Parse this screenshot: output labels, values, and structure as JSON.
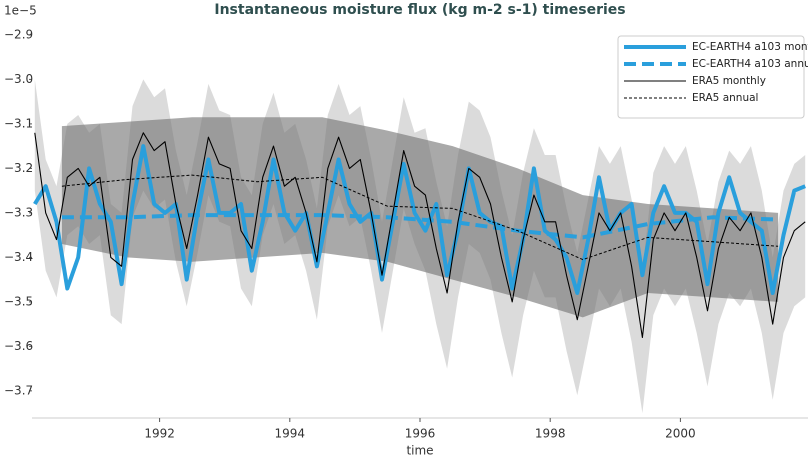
{
  "chart_data": {
    "type": "line",
    "title": "Instantaneous moisture flux (kg m-2 s-1) timeseries",
    "xlabel": "time",
    "offset_label": "1e−5",
    "xlim": [
      1990.04,
      2001.96
    ],
    "ylim": [
      -3.761,
      -2.862
    ],
    "xticks": [
      1992,
      1994,
      1996,
      1998,
      2000
    ],
    "yticks": [
      {
        "value": -3.7,
        "label": "−3.7"
      },
      {
        "value": -3.6,
        "label": "−3.6"
      },
      {
        "value": -3.5,
        "label": "−3.5"
      },
      {
        "value": -3.4,
        "label": "−3.4"
      },
      {
        "value": -3.3,
        "label": "−3.3"
      },
      {
        "value": -3.2,
        "label": "−3.2"
      },
      {
        "value": -3.1,
        "label": "−3.1"
      },
      {
        "value": -3.0,
        "label": "−3.0"
      },
      {
        "value": -2.9,
        "label": "−2.9"
      }
    ],
    "legend": "upper right",
    "bands": [
      {
        "color": "#bdbdbd",
        "opacity": 0.55,
        "x": [
          1990.083,
          1990.25,
          1990.417,
          1990.583,
          1990.75,
          1990.917,
          1991.083,
          1991.25,
          1991.417,
          1991.583,
          1991.75,
          1991.917,
          1992.083,
          1992.25,
          1992.417,
          1992.583,
          1992.75,
          1992.917,
          1993.083,
          1993.25,
          1993.417,
          1993.583,
          1993.75,
          1993.917,
          1994.083,
          1994.25,
          1994.417,
          1994.583,
          1994.75,
          1994.917,
          1995.083,
          1995.25,
          1995.417,
          1995.583,
          1995.75,
          1995.917,
          1996.083,
          1996.25,
          1996.417,
          1996.583,
          1996.75,
          1996.917,
          1997.083,
          1997.25,
          1997.417,
          1997.583,
          1997.75,
          1997.917,
          1998.083,
          1998.25,
          1998.417,
          1998.583,
          1998.75,
          1998.917,
          1999.083,
          1999.25,
          1999.417,
          1999.583,
          1999.75,
          1999.917,
          2000.083,
          2000.25,
          2000.417,
          2000.583,
          2000.75,
          2000.917,
          2001.083,
          2001.25,
          2001.417,
          2001.583,
          2001.75,
          2001.917
        ],
        "upper": [
          -3.0,
          -3.18,
          -3.24,
          -3.1,
          -3.08,
          -3.12,
          -3.1,
          -3.28,
          -3.3,
          -3.06,
          -3.0,
          -3.04,
          -3.02,
          -3.16,
          -3.26,
          -3.14,
          -3.01,
          -3.07,
          -3.08,
          -3.22,
          -3.26,
          -3.1,
          -3.03,
          -3.12,
          -3.1,
          -3.18,
          -3.29,
          -3.08,
          -3.01,
          -3.08,
          -3.06,
          -3.18,
          -3.32,
          -3.18,
          -3.04,
          -3.12,
          -3.11,
          -3.23,
          -3.33,
          -3.17,
          -3.05,
          -3.07,
          -3.13,
          -3.25,
          -3.35,
          -3.21,
          -3.11,
          -3.17,
          -3.17,
          -3.29,
          -3.39,
          -3.27,
          -3.15,
          -3.19,
          -3.15,
          -3.27,
          -3.43,
          -3.21,
          -3.15,
          -3.19,
          -3.15,
          -3.25,
          -3.37,
          -3.23,
          -3.16,
          -3.19,
          -3.15,
          -3.25,
          -3.4,
          -3.25,
          -3.19,
          -3.17
        ],
        "lower": [
          -3.25,
          -3.43,
          -3.49,
          -3.35,
          -3.33,
          -3.37,
          -3.35,
          -3.53,
          -3.55,
          -3.31,
          -3.25,
          -3.29,
          -3.27,
          -3.41,
          -3.51,
          -3.39,
          -3.26,
          -3.32,
          -3.33,
          -3.47,
          -3.51,
          -3.35,
          -3.28,
          -3.37,
          -3.35,
          -3.43,
          -3.54,
          -3.33,
          -3.26,
          -3.33,
          -3.31,
          -3.43,
          -3.57,
          -3.43,
          -3.29,
          -3.37,
          -3.43,
          -3.55,
          -3.65,
          -3.49,
          -3.37,
          -3.39,
          -3.45,
          -3.57,
          -3.67,
          -3.53,
          -3.43,
          -3.49,
          -3.49,
          -3.61,
          -3.71,
          -3.59,
          -3.47,
          -3.51,
          -3.47,
          -3.59,
          -3.75,
          -3.53,
          -3.47,
          -3.51,
          -3.47,
          -3.57,
          -3.69,
          -3.55,
          -3.48,
          -3.51,
          -3.47,
          -3.57,
          -3.72,
          -3.57,
          -3.51,
          -3.49
        ]
      },
      {
        "color": "#707070",
        "opacity": 0.6,
        "x": [
          1990.5,
          1991.5,
          1992.5,
          1993.5,
          1994.5,
          1995.5,
          1996.5,
          1997.5,
          1998.5,
          1999.5,
          2000.5,
          2001.5
        ],
        "upper": [
          -3.105,
          -3.095,
          -3.085,
          -3.085,
          -3.085,
          -3.115,
          -3.15,
          -3.2,
          -3.26,
          -3.28,
          -3.29,
          -3.3
        ],
        "lower": [
          -3.37,
          -3.4,
          -3.41,
          -3.4,
          -3.39,
          -3.41,
          -3.45,
          -3.49,
          -3.535,
          -3.48,
          -3.49,
          -3.5
        ]
      }
    ],
    "series": [
      {
        "name": "EC-EARTH4 a103 monthly",
        "color": "#2a9fdc",
        "width": 4,
        "dash": "none",
        "x": [
          1990.083,
          1990.25,
          1990.417,
          1990.583,
          1990.75,
          1990.917,
          1991.083,
          1991.25,
          1991.417,
          1991.583,
          1991.75,
          1991.917,
          1992.083,
          1992.25,
          1992.417,
          1992.583,
          1992.75,
          1992.917,
          1993.083,
          1993.25,
          1993.417,
          1993.583,
          1993.75,
          1993.917,
          1994.083,
          1994.25,
          1994.417,
          1994.583,
          1994.75,
          1994.917,
          1995.083,
          1995.25,
          1995.417,
          1995.583,
          1995.75,
          1995.917,
          1996.083,
          1996.25,
          1996.417,
          1996.583,
          1996.75,
          1996.917,
          1997.083,
          1997.25,
          1997.417,
          1997.583,
          1997.75,
          1997.917,
          1998.083,
          1998.25,
          1998.417,
          1998.583,
          1998.75,
          1998.917,
          1999.083,
          1999.25,
          1999.417,
          1999.583,
          1999.75,
          1999.917,
          2000.083,
          2000.25,
          2000.417,
          2000.583,
          2000.75,
          2000.917,
          2001.083,
          2001.25,
          2001.417,
          2001.583,
          2001.75,
          2001.917
        ],
        "values": [
          -3.28,
          -3.24,
          -3.32,
          -3.47,
          -3.4,
          -3.2,
          -3.28,
          -3.32,
          -3.46,
          -3.28,
          -3.15,
          -3.28,
          -3.3,
          -3.28,
          -3.45,
          -3.3,
          -3.18,
          -3.3,
          -3.3,
          -3.28,
          -3.43,
          -3.32,
          -3.18,
          -3.3,
          -3.34,
          -3.3,
          -3.42,
          -3.3,
          -3.18,
          -3.28,
          -3.32,
          -3.3,
          -3.45,
          -3.32,
          -3.19,
          -3.3,
          -3.34,
          -3.28,
          -3.44,
          -3.34,
          -3.2,
          -3.3,
          -3.32,
          -3.33,
          -3.47,
          -3.36,
          -3.2,
          -3.34,
          -3.36,
          -3.4,
          -3.48,
          -3.36,
          -3.22,
          -3.34,
          -3.3,
          -3.28,
          -3.44,
          -3.3,
          -3.24,
          -3.3,
          -3.3,
          -3.32,
          -3.46,
          -3.3,
          -3.22,
          -3.3,
          -3.32,
          -3.34,
          -3.48,
          -3.35,
          -3.25,
          -3.24
        ]
      },
      {
        "name": "EC-EARTH4 a103 annual",
        "color": "#2a9fdc",
        "width": 4,
        "dash": "12,6",
        "x": [
          1990.5,
          1991.5,
          1992.5,
          1993.5,
          1994.5,
          1995.5,
          1996.5,
          1997.5,
          1998.5,
          1999.5,
          2000.5,
          2001.5
        ],
        "values": [
          -3.31,
          -3.31,
          -3.305,
          -3.305,
          -3.305,
          -3.31,
          -3.32,
          -3.34,
          -3.355,
          -3.325,
          -3.31,
          -3.315
        ]
      },
      {
        "name": "ERA5 monthly",
        "color": "#000000",
        "width": 1.1,
        "dash": "none",
        "x": [
          1990.083,
          1990.25,
          1990.417,
          1990.583,
          1990.75,
          1990.917,
          1991.083,
          1991.25,
          1991.417,
          1991.583,
          1991.75,
          1991.917,
          1992.083,
          1992.25,
          1992.417,
          1992.583,
          1992.75,
          1992.917,
          1993.083,
          1993.25,
          1993.417,
          1993.583,
          1993.75,
          1993.917,
          1994.083,
          1994.25,
          1994.417,
          1994.583,
          1994.75,
          1994.917,
          1995.083,
          1995.25,
          1995.417,
          1995.583,
          1995.75,
          1995.917,
          1996.083,
          1996.25,
          1996.417,
          1996.583,
          1996.75,
          1996.917,
          1997.083,
          1997.25,
          1997.417,
          1997.583,
          1997.75,
          1997.917,
          1998.083,
          1998.25,
          1998.417,
          1998.583,
          1998.75,
          1998.917,
          1999.083,
          1999.25,
          1999.417,
          1999.583,
          1999.75,
          1999.917,
          2000.083,
          2000.25,
          2000.417,
          2000.583,
          2000.75,
          2000.917,
          2001.083,
          2001.25,
          2001.417,
          2001.583,
          2001.75,
          2001.917
        ],
        "values": [
          -3.12,
          -3.3,
          -3.36,
          -3.22,
          -3.2,
          -3.24,
          -3.22,
          -3.4,
          -3.42,
          -3.18,
          -3.12,
          -3.16,
          -3.14,
          -3.28,
          -3.38,
          -3.26,
          -3.13,
          -3.19,
          -3.2,
          -3.34,
          -3.38,
          -3.22,
          -3.15,
          -3.24,
          -3.22,
          -3.3,
          -3.41,
          -3.2,
          -3.13,
          -3.2,
          -3.18,
          -3.3,
          -3.44,
          -3.3,
          -3.16,
          -3.24,
          -3.26,
          -3.38,
          -3.48,
          -3.32,
          -3.2,
          -3.22,
          -3.28,
          -3.4,
          -3.5,
          -3.36,
          -3.26,
          -3.32,
          -3.32,
          -3.44,
          -3.54,
          -3.42,
          -3.3,
          -3.34,
          -3.3,
          -3.42,
          -3.58,
          -3.36,
          -3.3,
          -3.34,
          -3.3,
          -3.4,
          -3.52,
          -3.38,
          -3.31,
          -3.34,
          -3.3,
          -3.4,
          -3.55,
          -3.4,
          -3.34,
          -3.32
        ]
      },
      {
        "name": "ERA5 annual",
        "color": "#000000",
        "width": 1,
        "dash": "3,2",
        "x": [
          1990.5,
          1991.5,
          1992.5,
          1993.5,
          1994.5,
          1995.5,
          1996.5,
          1997.5,
          1998.5,
          1999.5,
          2000.5,
          2001.5
        ],
        "values": [
          -3.24,
          -3.225,
          -3.215,
          -3.23,
          -3.22,
          -3.285,
          -3.29,
          -3.34,
          -3.405,
          -3.355,
          -3.365,
          -3.375
        ]
      }
    ]
  }
}
